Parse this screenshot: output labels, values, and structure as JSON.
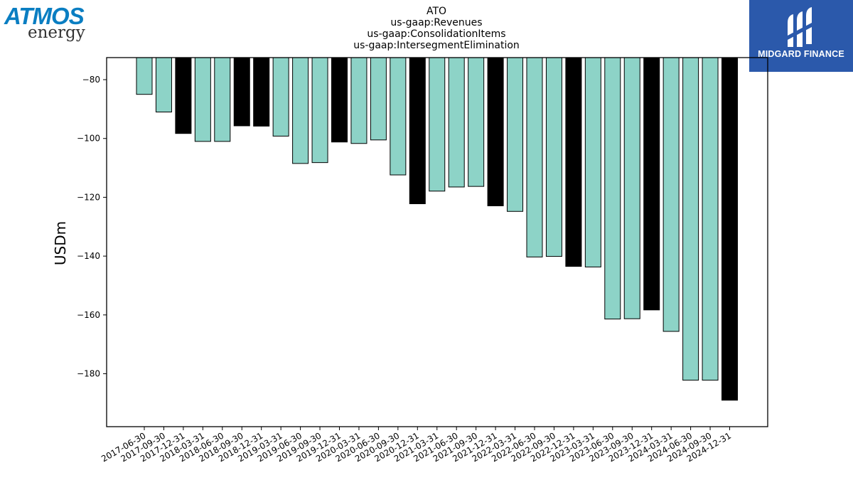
{
  "logos": {
    "left_wordmark": "ATMOS",
    "left_subword": "energy",
    "right_brand": "MIDGARD FINANCE"
  },
  "colors": {
    "bar_normal": "#8dd3c7",
    "bar_year_end": "#000000",
    "brand_blue": "#2b59ab",
    "atmos_blue": "#0a7ec2"
  },
  "chart_data": {
    "type": "bar",
    "title_lines": [
      "ATO",
      "us-gaap:Revenues",
      "us-gaap:ConsolidationItems",
      "us-gaap:IntersegmentElimination"
    ],
    "xlabel": "",
    "ylabel": "USDm",
    "ylim": [
      -198,
      -72.5
    ],
    "yticks": [
      -80,
      -100,
      -120,
      -140,
      -160,
      -180
    ],
    "grid": false,
    "categories": [
      "2017-06-30",
      "2017-09-30",
      "2017-12-31",
      "2018-03-31",
      "2018-06-30",
      "2018-09-30",
      "2018-12-31",
      "2019-03-31",
      "2019-06-30",
      "2019-09-30",
      "2019-12-31",
      "2020-03-31",
      "2020-06-30",
      "2020-09-30",
      "2020-12-31",
      "2021-03-31",
      "2021-06-30",
      "2021-09-30",
      "2021-12-31",
      "2022-03-31",
      "2022-06-30",
      "2022-09-30",
      "2022-12-31",
      "2023-03-31",
      "2023-06-30",
      "2023-09-30",
      "2023-12-31",
      "2024-03-31",
      "2024-06-30",
      "2024-09-30",
      "2024-12-31"
    ],
    "values": [
      -85,
      -91,
      -98.3,
      -101,
      -101,
      -95.7,
      -95.8,
      -99.2,
      -108.5,
      -108.2,
      -101.2,
      -101.7,
      -100.5,
      -112.4,
      -122.2,
      -117.9,
      -116.5,
      -116.3,
      -122.9,
      -124.8,
      -140.3,
      -140.1,
      -143.5,
      -143.7,
      -161.4,
      -161.3,
      -158.3,
      -165.6,
      -182.2,
      -182.2,
      -189
    ],
    "highlight": [
      false,
      false,
      true,
      false,
      false,
      true,
      true,
      false,
      false,
      false,
      true,
      false,
      false,
      false,
      true,
      false,
      false,
      false,
      true,
      false,
      false,
      false,
      true,
      false,
      false,
      false,
      true,
      false,
      false,
      false,
      true
    ]
  }
}
